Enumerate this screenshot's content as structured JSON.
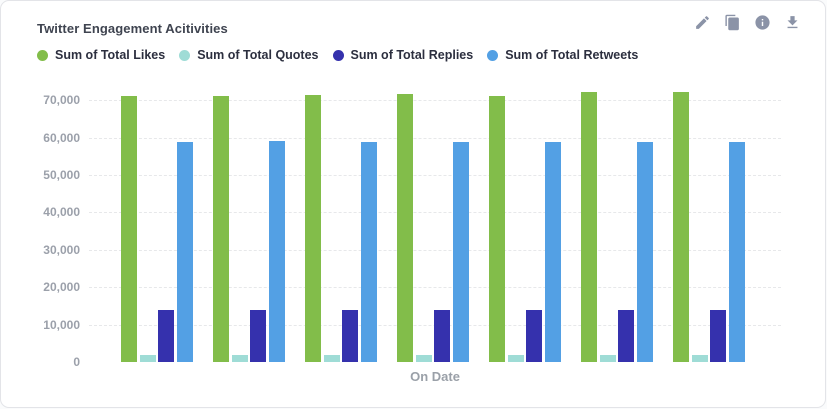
{
  "card": {
    "title": "Twitter Engagement Acitivities",
    "toolbar": [
      {
        "label": "Edit",
        "icon": "pencil-icon"
      },
      {
        "label": "Duplicate",
        "icon": "copy-icon"
      },
      {
        "label": "Info",
        "icon": "info-icon"
      },
      {
        "label": "Download",
        "icon": "download-icon"
      }
    ],
    "icon_color": "#8b93a7"
  },
  "chart_data": {
    "type": "bar",
    "title": "Twitter Engagement Acitivities",
    "xlabel": "On Date",
    "ylabel": "",
    "ylim": [
      0,
      75000
    ],
    "yticks": [
      0,
      10000,
      20000,
      30000,
      40000,
      50000,
      60000,
      70000
    ],
    "ytick_labels": [
      "0",
      "10,000",
      "20,000",
      "30,000",
      "40,000",
      "50,000",
      "60,000",
      "70,000"
    ],
    "grid": "horizontal-dashed",
    "gridline_color": "#e7e8ea",
    "legend_position": "top-left",
    "categories": [
      "",
      "",
      "",
      "",
      "",
      "",
      ""
    ],
    "x_tick_labels_visible": false,
    "series": [
      {
        "name": "Sum of Total Likes",
        "color": "#82bd4a",
        "values": [
          71000,
          71000,
          71400,
          71700,
          71100,
          72100,
          72100
        ]
      },
      {
        "name": "Sum of Total Quotes",
        "color": "#9fdcd6",
        "values": [
          2000,
          2000,
          2000,
          2000,
          2000,
          2000,
          2000
        ]
      },
      {
        "name": "Sum of Total Replies",
        "color": "#3531ad",
        "values": [
          14000,
          14000,
          13900,
          14000,
          14000,
          14000,
          14000
        ]
      },
      {
        "name": "Sum of Total Retweets",
        "color": "#53a0e4",
        "values": [
          58700,
          59200,
          58700,
          58700,
          58700,
          58800,
          58800
        ]
      }
    ]
  }
}
